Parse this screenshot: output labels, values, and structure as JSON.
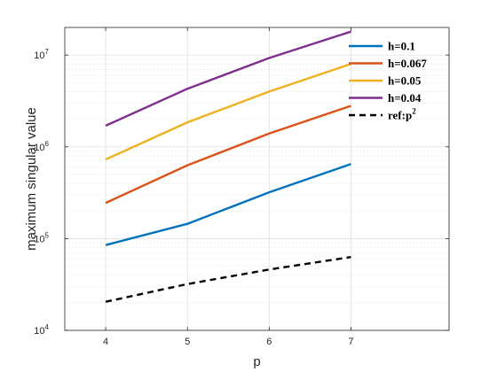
{
  "chart_data": {
    "type": "line",
    "xlabel": "p",
    "ylabel": "maximum singular value",
    "xlim": [
      3.5,
      8.2
    ],
    "ylim": [
      10000,
      20000000
    ],
    "yscale": "log",
    "grid": true,
    "minor_grid": true,
    "legend_position": "top-right",
    "x_ticks": [
      4,
      5,
      6,
      7
    ],
    "y_ticks": [
      {
        "value": 10000,
        "base": "10",
        "exp": "4"
      },
      {
        "value": 100000,
        "base": "10",
        "exp": "5"
      },
      {
        "value": 1000000,
        "base": "10",
        "exp": "6"
      },
      {
        "value": 10000000,
        "base": "10",
        "exp": "7"
      }
    ],
    "series": [
      {
        "name": "h=0.1",
        "color": "#0072BD",
        "dash": "solid",
        "x": [
          4,
          5,
          6,
          7
        ],
        "y": [
          85000,
          145000,
          320000,
          650000
        ]
      },
      {
        "name": "h=0.067",
        "color": "#D95319",
        "dash": "solid",
        "x": [
          4,
          5,
          6,
          7
        ],
        "y": [
          245000,
          630000,
          1400000,
          2800000
        ]
      },
      {
        "name": "h=0.05",
        "color": "#EDB120",
        "dash": "solid",
        "x": [
          4,
          5,
          6,
          7
        ],
        "y": [
          730000,
          1850000,
          4000000,
          8000000
        ]
      },
      {
        "name": "h=0.04",
        "color": "#7E2F8E",
        "dash": "solid",
        "x": [
          4,
          5,
          6,
          7
        ],
        "y": [
          1700000,
          4300000,
          9300000,
          18000000
        ]
      },
      {
        "name": "ref:p",
        "name_sup": "2",
        "color": "#000000",
        "dash": "dashed",
        "x": [
          4,
          5,
          6,
          7
        ],
        "y": [
          20500,
          32000,
          46000,
          63000
        ]
      }
    ]
  }
}
